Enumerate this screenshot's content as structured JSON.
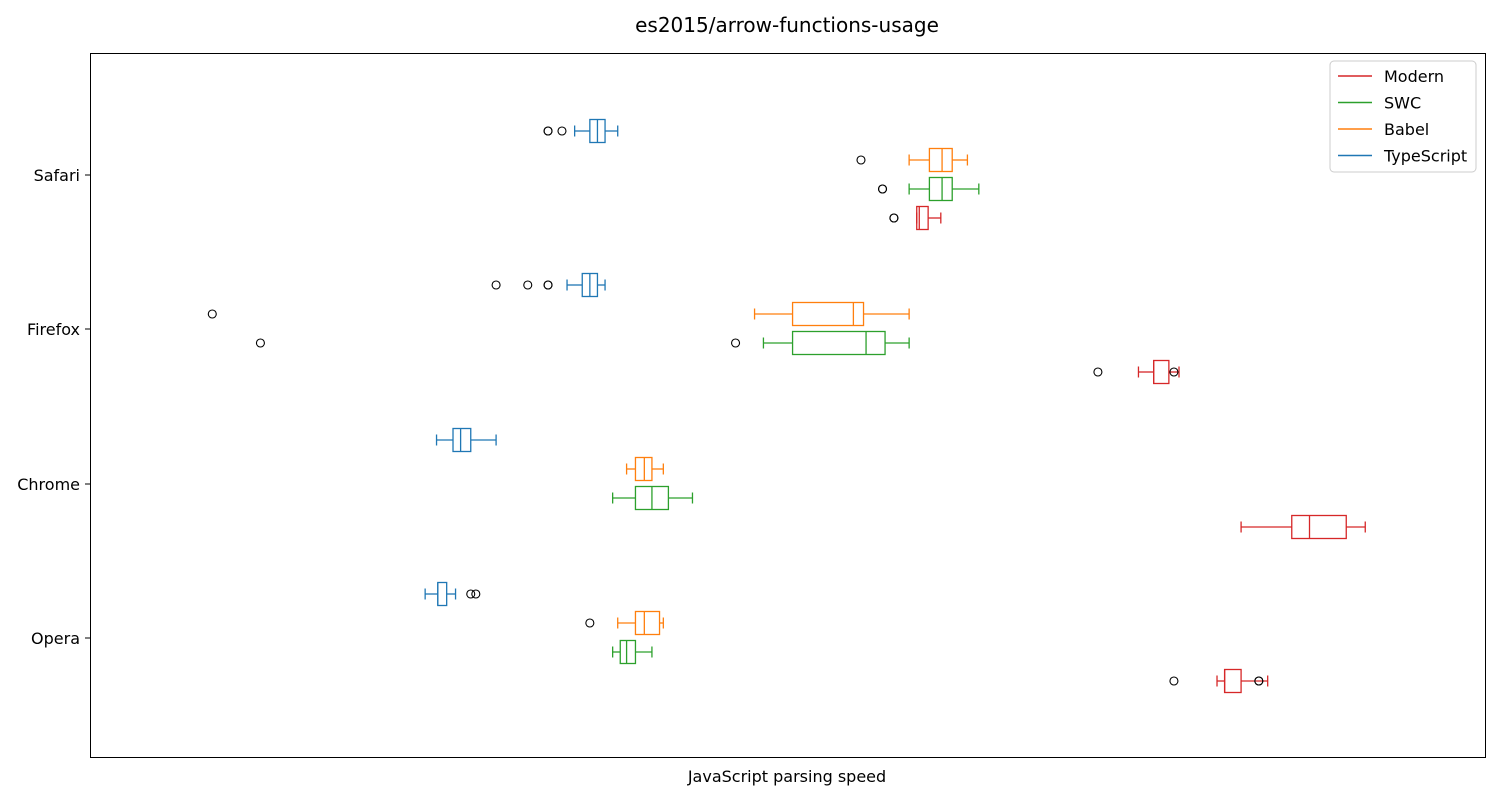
{
  "chart_data": {
    "type": "boxplot",
    "orientation": "horizontal",
    "title": "es2015/arrow-functions-usage",
    "xlabel": "JavaScript parsing speed",
    "ylabel": "",
    "x_ticks_shown": false,
    "x_range": [
      0,
      100
    ],
    "grid": false,
    "legend_position": "top-right",
    "categories": [
      "Safari",
      "Firefox",
      "Chrome",
      "Opera"
    ],
    "series": [
      {
        "name": "Modern",
        "color": "#d62728",
        "boxes": {
          "Safari": {
            "whislo": 60.2,
            "q1": 60.2,
            "med": 60.4,
            "q3": 61.1,
            "whishi": 62.1,
            "fliers": [
              58.4,
              58.4
            ]
          },
          "Firefox": {
            "whislo": 77.7,
            "q1": 78.9,
            "med": 78.9,
            "q3": 80.1,
            "whishi": 80.9,
            "fliers": [
              74.5,
              80.5
            ]
          },
          "Chrome": {
            "whislo": 85.8,
            "q1": 89.8,
            "med": 91.2,
            "q3": 94.1,
            "whishi": 95.6,
            "fliers": []
          },
          "Opera": {
            "whislo": 83.9,
            "q1": 84.5,
            "med": 84.5,
            "q3": 85.8,
            "whishi": 87.9,
            "fliers": [
              80.5,
              87.2,
              87.2
            ]
          }
        }
      },
      {
        "name": "SWC",
        "color": "#2ca02c",
        "boxes": {
          "Safari": {
            "whislo": 59.6,
            "q1": 61.2,
            "med": 62.2,
            "q3": 63.0,
            "whishi": 65.1,
            "fliers": [
              57.5,
              57.5
            ]
          },
          "Firefox": {
            "whislo": 48.1,
            "q1": 50.4,
            "med": 56.2,
            "q3": 57.7,
            "whishi": 59.6,
            "fliers": [
              8.4,
              45.9
            ]
          },
          "Chrome": {
            "whislo": 36.2,
            "q1": 38.0,
            "med": 39.3,
            "q3": 40.6,
            "whishi": 42.5,
            "fliers": []
          },
          "Opera": {
            "whislo": 36.2,
            "q1": 36.8,
            "med": 37.3,
            "q3": 38.0,
            "whishi": 39.3,
            "fliers": []
          }
        }
      },
      {
        "name": "Babel",
        "color": "#ff7f0e",
        "boxes": {
          "Safari": {
            "whislo": 59.6,
            "q1": 61.2,
            "med": 62.2,
            "q3": 63.0,
            "whishi": 64.2,
            "fliers": [
              55.8
            ]
          },
          "Firefox": {
            "whislo": 47.4,
            "q1": 50.4,
            "med": 55.2,
            "q3": 56.0,
            "whishi": 59.6,
            "fliers": [
              4.6
            ]
          },
          "Chrome": {
            "whislo": 37.3,
            "q1": 38.0,
            "med": 38.7,
            "q3": 39.3,
            "whishi": 40.2,
            "fliers": []
          },
          "Opera": {
            "whislo": 36.6,
            "q1": 38.0,
            "med": 38.7,
            "q3": 39.9,
            "whishi": 40.2,
            "fliers": [
              34.4
            ]
          }
        }
      },
      {
        "name": "TypeScript",
        "color": "#1f77b4",
        "boxes": {
          "Safari": {
            "whislo": 33.2,
            "q1": 34.4,
            "med": 35.0,
            "q3": 35.6,
            "whishi": 36.6,
            "fliers": [
              31.1,
              31.1,
              32.2
            ]
          },
          "Firefox": {
            "whislo": 32.6,
            "q1": 33.8,
            "med": 34.4,
            "q3": 35.0,
            "whishi": 35.6,
            "fliers": [
              27.0,
              29.5,
              31.1,
              31.1
            ]
          },
          "Chrome": {
            "whislo": 22.3,
            "q1": 23.6,
            "med": 24.2,
            "q3": 25.0,
            "whishi": 27.0,
            "fliers": []
          },
          "Opera": {
            "whislo": 21.4,
            "q1": 22.4,
            "med": 22.4,
            "q3": 23.1,
            "whishi": 23.8,
            "fliers": [
              25.0,
              25.4
            ]
          }
        }
      }
    ],
    "legend_order": [
      "Modern",
      "SWC",
      "Babel",
      "TypeScript"
    ]
  }
}
